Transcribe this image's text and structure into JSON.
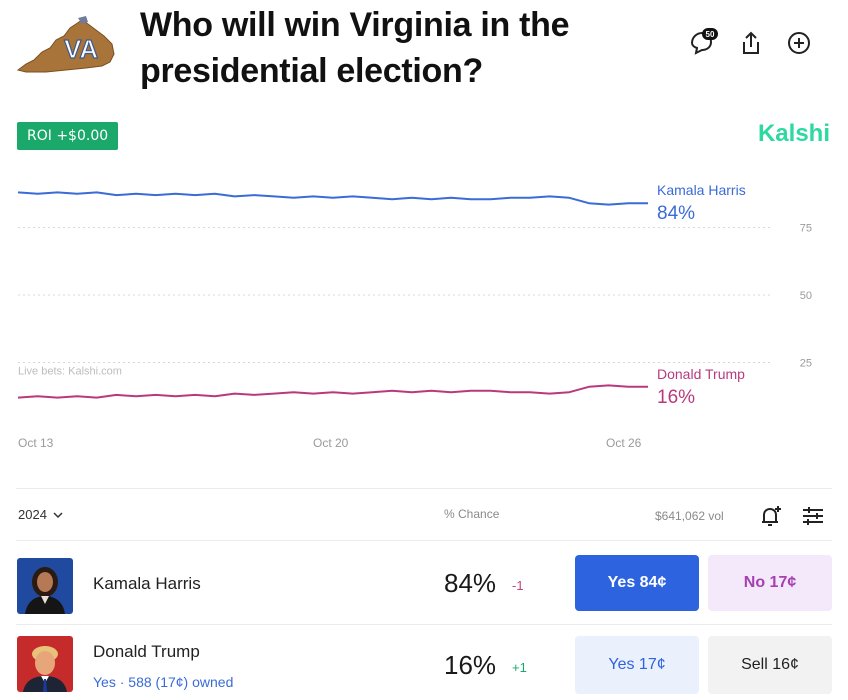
{
  "header": {
    "state_abbr": "VA",
    "title": "Who will win Virginia in the presidential election?",
    "comment_count": "50"
  },
  "roi_badge": "ROI +$0.00",
  "brand": "Kalshi",
  "chart_data": {
    "type": "line",
    "x_ticks": [
      "Oct 13",
      "Oct 20",
      "Oct 26"
    ],
    "y_ticks": [
      75,
      50,
      25
    ],
    "ylim": [
      0,
      100
    ],
    "grid": true,
    "watermark": "Live bets: Kalshi.com",
    "series": [
      {
        "name": "Kamala Harris",
        "end_label": "84%",
        "color": "#3a6bd6",
        "values": [
          88,
          87.5,
          88,
          87.5,
          88,
          87,
          87.5,
          87,
          87.5,
          87,
          87.5,
          86.5,
          87,
          86.5,
          86,
          86.5,
          86,
          86.5,
          86,
          85.5,
          86,
          85.5,
          86,
          85.5,
          85.5,
          86,
          86,
          86.5,
          86,
          84,
          83.5,
          84,
          84
        ]
      },
      {
        "name": "Donald Trump",
        "end_label": "16%",
        "color": "#b83a7e",
        "values": [
          12,
          12.5,
          12,
          12.5,
          12,
          13,
          12.5,
          13,
          12.5,
          13,
          12.5,
          13.5,
          13,
          13.5,
          14,
          13.5,
          14,
          13.5,
          14,
          14.5,
          14,
          14.5,
          14,
          14.5,
          14.5,
          14,
          14,
          13.5,
          14,
          16,
          16.5,
          16,
          16
        ]
      }
    ]
  },
  "table": {
    "year": "2024",
    "chance_header": "% Chance",
    "volume": "$641,062 vol",
    "rows": [
      {
        "name": "Kamala Harris",
        "owned": "",
        "chance": "84%",
        "delta": "-1",
        "yes_label": "Yes 84¢",
        "second_label": "No 17¢"
      },
      {
        "name": "Donald Trump",
        "owned": "Yes · 588 (17¢) owned",
        "chance": "16%",
        "delta": "+1",
        "yes_label": "Yes 17¢",
        "second_label": "Sell 16¢"
      }
    ]
  }
}
